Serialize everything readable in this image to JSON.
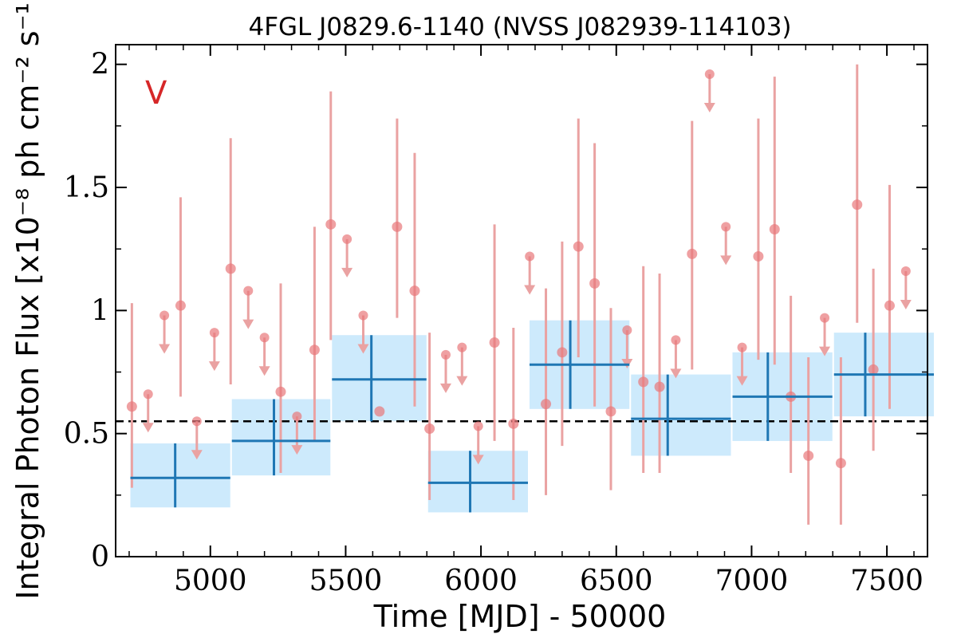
{
  "chart_data": {
    "type": "scatter",
    "title": "4FGL J0829.6-1140 (NVSS J082939-114103)",
    "xlabel": "Time [MJD] - 50000",
    "ylabel": "Integral Photon Flux [x10⁻⁸ ph cm⁻² s⁻¹]",
    "corner_label": "V",
    "xlim": [
      4650,
      7650
    ],
    "ylim": [
      0,
      2.08
    ],
    "x_ticks": [
      5000,
      5500,
      6000,
      6500,
      7000,
      7500
    ],
    "x_tick_labels": [
      "5000",
      "5500",
      "6000",
      "6500",
      "7000",
      "7500"
    ],
    "y_ticks": [
      0,
      0.5,
      1,
      1.5,
      2
    ],
    "y_tick_labels": [
      "0",
      "0.5",
      "1",
      "1.5",
      "2"
    ],
    "average_flux": 0.55,
    "colors": {
      "points": "#e8787a",
      "point_error": "#eaa2a2",
      "bins": "#1f77b4",
      "bin_fill": "#cdeafc",
      "average_line": "#000000",
      "corner_label": "#d62728"
    },
    "series": [
      {
        "kind": "detections",
        "points": [
          {
            "x": 4710,
            "y": 0.61,
            "ylo": 0.28,
            "yhi": 1.03
          },
          {
            "x": 4890,
            "y": 1.02,
            "ylo": 0.65,
            "yhi": 1.46
          },
          {
            "x": 5075,
            "y": 1.17,
            "ylo": 0.7,
            "yhi": 1.7
          },
          {
            "x": 5260,
            "y": 0.67,
            "ylo": 0.34,
            "yhi": 1.11
          },
          {
            "x": 5385,
            "y": 0.84,
            "ylo": 0.47,
            "yhi": 1.34
          },
          {
            "x": 5445,
            "y": 1.35,
            "ylo": 0.88,
            "yhi": 1.89
          },
          {
            "x": 5625,
            "y": 0.59,
            "ylo": 0.59,
            "yhi": 0.59
          },
          {
            "x": 5690,
            "y": 1.34,
            "ylo": 0.97,
            "yhi": 1.78
          },
          {
            "x": 5755,
            "y": 1.08,
            "ylo": 0.61,
            "yhi": 1.64
          },
          {
            "x": 5810,
            "y": 0.52,
            "ylo": 0.23,
            "yhi": 0.91
          },
          {
            "x": 6050,
            "y": 0.87,
            "ylo": 0.47,
            "yhi": 1.35
          },
          {
            "x": 6120,
            "y": 0.54,
            "ylo": 0.23,
            "yhi": 0.93
          },
          {
            "x": 6240,
            "y": 0.62,
            "ylo": 0.25,
            "yhi": 1.09
          },
          {
            "x": 6300,
            "y": 0.83,
            "ylo": 0.45,
            "yhi": 1.28
          },
          {
            "x": 6360,
            "y": 1.26,
            "ylo": 0.81,
            "yhi": 1.78
          },
          {
            "x": 6420,
            "y": 1.11,
            "ylo": 0.61,
            "yhi": 1.68
          },
          {
            "x": 6480,
            "y": 0.59,
            "ylo": 0.27,
            "yhi": 1.01
          },
          {
            "x": 6600,
            "y": 0.71,
            "ylo": 0.34,
            "yhi": 1.18
          },
          {
            "x": 6660,
            "y": 0.69,
            "ylo": 0.34,
            "yhi": 1.15
          },
          {
            "x": 6780,
            "y": 1.23,
            "ylo": 0.76,
            "yhi": 1.77
          },
          {
            "x": 7025,
            "y": 1.22,
            "ylo": 0.8,
            "yhi": 1.78
          },
          {
            "x": 7085,
            "y": 1.33,
            "ylo": 0.78,
            "yhi": 1.95
          },
          {
            "x": 7145,
            "y": 0.65,
            "ylo": 0.34,
            "yhi": 1.06
          },
          {
            "x": 7210,
            "y": 0.41,
            "ylo": 0.13,
            "yhi": 0.81
          },
          {
            "x": 7330,
            "y": 0.38,
            "ylo": 0.13,
            "yhi": 0.81
          },
          {
            "x": 7390,
            "y": 1.43,
            "ylo": 0.95,
            "yhi": 2.0
          },
          {
            "x": 7450,
            "y": 0.76,
            "ylo": 0.43,
            "yhi": 1.17
          },
          {
            "x": 7510,
            "y": 1.02,
            "ylo": 0.6,
            "yhi": 1.51
          }
        ]
      },
      {
        "kind": "upper_limits",
        "points": [
          {
            "x": 4770,
            "y": 0.66
          },
          {
            "x": 4830,
            "y": 0.98
          },
          {
            "x": 4950,
            "y": 0.55
          },
          {
            "x": 5015,
            "y": 0.91
          },
          {
            "x": 5140,
            "y": 1.08
          },
          {
            "x": 5200,
            "y": 0.89
          },
          {
            "x": 5320,
            "y": 0.57
          },
          {
            "x": 5505,
            "y": 1.29
          },
          {
            "x": 5565,
            "y": 0.98
          },
          {
            "x": 5870,
            "y": 0.82
          },
          {
            "x": 5930,
            "y": 0.85
          },
          {
            "x": 5990,
            "y": 0.53
          },
          {
            "x": 6180,
            "y": 1.22
          },
          {
            "x": 6540,
            "y": 0.92
          },
          {
            "x": 6720,
            "y": 0.88
          },
          {
            "x": 6845,
            "y": 1.96
          },
          {
            "x": 6905,
            "y": 1.34
          },
          {
            "x": 6965,
            "y": 0.85
          },
          {
            "x": 7270,
            "y": 0.97
          },
          {
            "x": 7570,
            "y": 1.16
          }
        ]
      },
      {
        "kind": "binned_light_curve",
        "bins": [
          {
            "x0": 4675,
            "x1": 5050,
            "y": 0.32,
            "ylo": 0.2,
            "yhi": 0.46,
            "xc": 4870
          },
          {
            "x0": 5050,
            "x1": 5420,
            "y": 0.47,
            "ylo": 0.33,
            "yhi": 0.64,
            "xc": 5235
          },
          {
            "x0": 5420,
            "x1": 5775,
            "y": 0.72,
            "ylo": 0.55,
            "yhi": 0.9,
            "xc": 5595
          },
          {
            "x0": 5775,
            "x1": 6150,
            "y": 0.3,
            "ylo": 0.18,
            "yhi": 0.43,
            "xc": 5960
          },
          {
            "x0": 6150,
            "x1": 6525,
            "y": 0.78,
            "ylo": 0.6,
            "yhi": 0.96,
            "xc": 6330
          },
          {
            "x0": 6525,
            "x1": 6900,
            "y": 0.56,
            "ylo": 0.41,
            "yhi": 0.74,
            "xc": 6690
          },
          {
            "x0": 6900,
            "x1": 7275,
            "y": 0.65,
            "ylo": 0.47,
            "yhi": 0.83,
            "xc": 7060
          },
          {
            "x0": 7275,
            "x1": 7650,
            "y": 0.74,
            "ylo": 0.57,
            "yhi": 0.91,
            "xc": 7420
          }
        ]
      }
    ]
  }
}
